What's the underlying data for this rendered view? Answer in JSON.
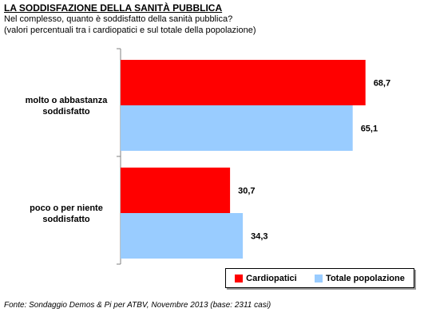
{
  "header": {
    "title": "LA SODDISFAZIONE DELLA SANITÀ PUBBLICA",
    "subtitle_line1": "Nel complesso, quanto è soddisfatto della sanità pubblica?",
    "subtitle_line2": "(valori percentuali tra i cardiopatici e sul totale della popolazione)"
  },
  "footer": {
    "source": "Fonte: Sondaggio Demos & Pi per ATBV, Novembre 2013 (base: 2311 casi)"
  },
  "chart_data": {
    "type": "bar",
    "orientation": "horizontal",
    "categories": [
      [
        "molto o abbastanza",
        "soddisfatto"
      ],
      [
        "poco o per niente",
        "soddisfatto"
      ]
    ],
    "series": [
      {
        "name": "Cardiopatici",
        "values": [
          68.7,
          30.7
        ],
        "labels": [
          "68,7",
          "30,7"
        ],
        "color": "#ff0000"
      },
      {
        "name": "Totale popolazione",
        "values": [
          65.1,
          34.3
        ],
        "labels": [
          "65,1",
          "34,3"
        ],
        "color": "#99ccff"
      }
    ],
    "xlim": [
      0,
      100
    ],
    "grid": false,
    "legend": "bottom-right"
  }
}
